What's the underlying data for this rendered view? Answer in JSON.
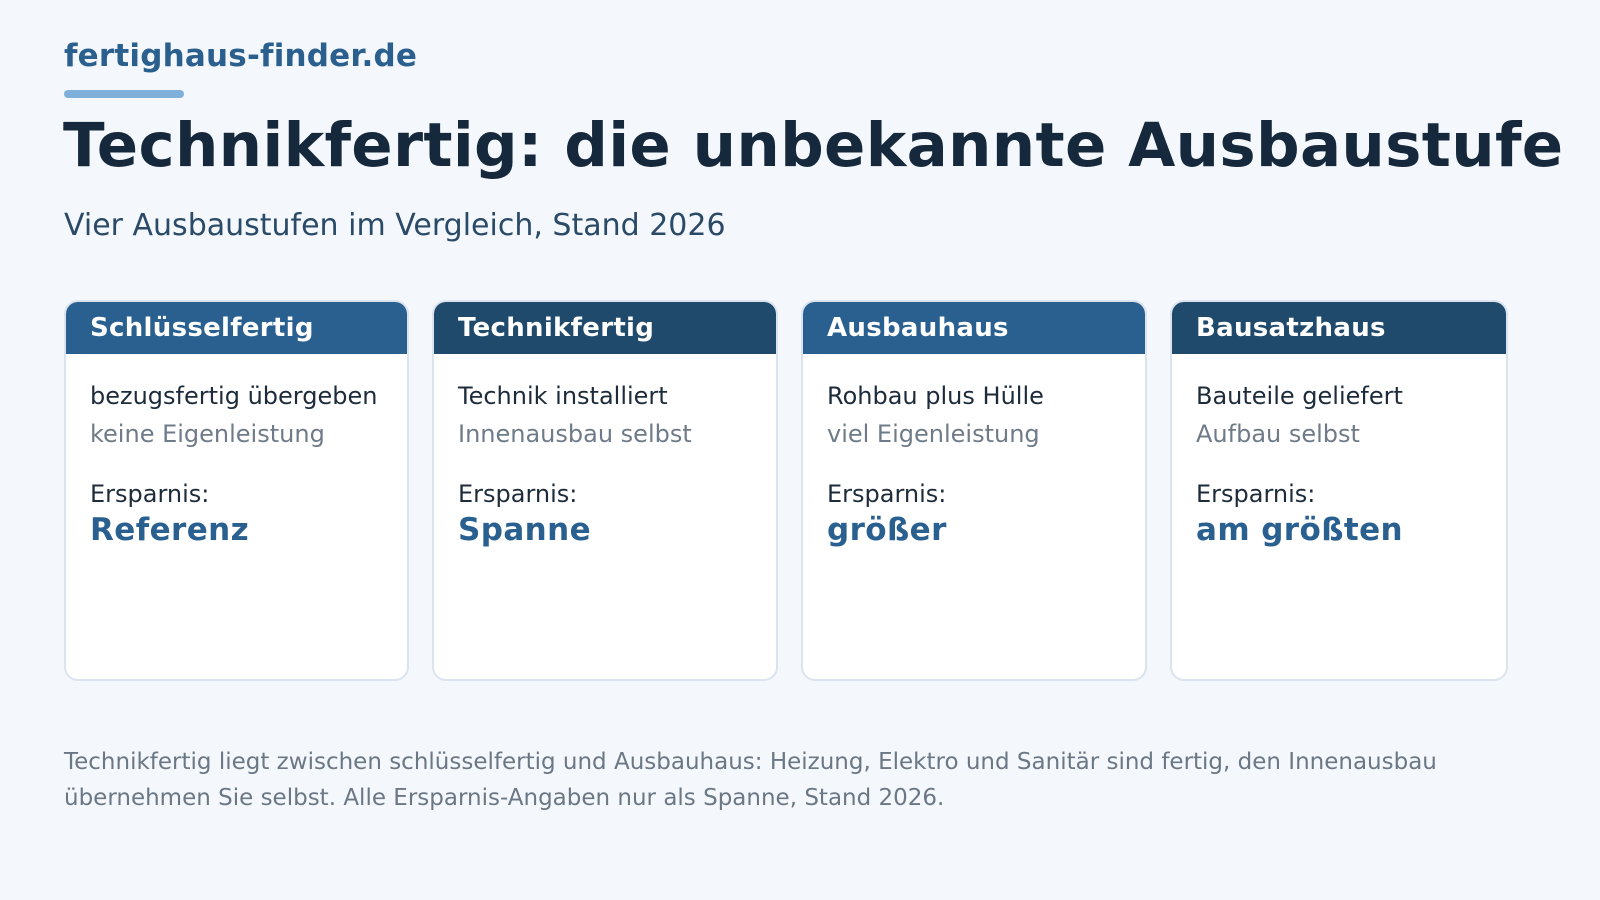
{
  "brand": {
    "name": "fertighaus-finder.de"
  },
  "header": {
    "title": "Technikfertig: die unbekannte Ausbaustufe",
    "subtitle": "Vier Ausbaustufen im Vergleich, Stand 2026"
  },
  "colors": {
    "header_medium": "#2a6090",
    "header_dark": "#1f4a6c",
    "accent": "#2a6090"
  },
  "cards": [
    {
      "title": "Schlüsselfertig",
      "line1": "bezugsfertig übergeben",
      "line2": "keine Eigenleistung",
      "savings_label": "Ersparnis:",
      "savings_value": "Referenz"
    },
    {
      "title": "Technikfertig",
      "line1": "Technik installiert",
      "line2": "Innenausbau selbst",
      "savings_label": "Ersparnis:",
      "savings_value": "Spanne"
    },
    {
      "title": "Ausbauhaus",
      "line1": "Rohbau plus Hülle",
      "line2": "viel Eigenleistung",
      "savings_label": "Ersparnis:",
      "savings_value": "größer"
    },
    {
      "title": "Bausatzhaus",
      "line1": "Bauteile geliefert",
      "line2": "Aufbau selbst",
      "savings_label": "Ersparnis:",
      "savings_value": "am größten"
    }
  ],
  "footnote": "Technikfertig liegt zwischen schlüsselfertig und Ausbauhaus: Heizung, Elektro und Sanitär sind fertig, den Innenausbau übernehmen Sie selbst. Alle Ersparnis-Angaben nur als Spanne, Stand 2026."
}
